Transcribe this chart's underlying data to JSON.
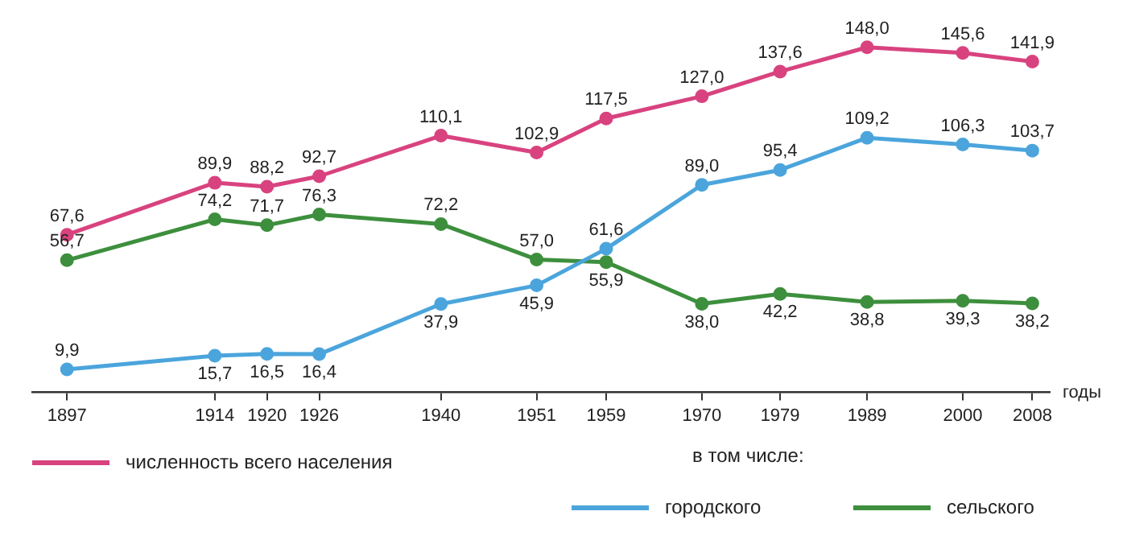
{
  "chart_data": {
    "type": "line",
    "xlabel": "годы",
    "x": [
      1897,
      1914,
      1920,
      1926,
      1940,
      1951,
      1959,
      1970,
      1979,
      1989,
      2000,
      2008
    ],
    "xlim": [
      1893,
      2010
    ],
    "xticks": [
      1897,
      1914,
      1920,
      1926,
      1940,
      1951,
      1959,
      1970,
      1979,
      1989,
      2000,
      2008
    ],
    "tick_labels": "x",
    "grid": false,
    "legend": "bottom",
    "marker": "circle",
    "line_style": "solid",
    "series": [
      {
        "name": "численность всего населения",
        "color": "#d8437f",
        "values": [
          67.6,
          89.9,
          88.2,
          92.7,
          110.1,
          102.9,
          117.5,
          127.0,
          137.6,
          148.0,
          145.6,
          141.9
        ],
        "value_labels": [
          "67,6",
          "89,9",
          "88,2",
          "92,7",
          "110,1",
          "102,9",
          "117,5",
          "127,0",
          "137,6",
          "148,0",
          "145,6",
          "141,9"
        ]
      },
      {
        "name": "городского",
        "color": "#4ba5dc",
        "values": [
          9.9,
          15.7,
          16.5,
          16.4,
          37.9,
          45.9,
          61.6,
          89.0,
          95.4,
          109.2,
          106.3,
          103.7
        ],
        "value_labels": [
          "9,9",
          "15,7",
          "16,5",
          "16,4",
          "37,9",
          "45,9",
          "61,6",
          "89,0",
          "95,4",
          "109,2",
          "106,3",
          "103,7"
        ]
      },
      {
        "name": "сельского",
        "color": "#3d8f3d",
        "values": [
          56.7,
          74.2,
          71.7,
          76.3,
          72.2,
          57.0,
          55.9,
          38.0,
          42.2,
          38.8,
          39.3,
          38.2
        ],
        "value_labels": [
          "56,7",
          "74,2",
          "71,7",
          "76,3",
          "72,2",
          "57,0",
          "55,9",
          "38,0",
          "42,2",
          "38,8",
          "39,3",
          "38,2"
        ]
      }
    ],
    "annotations": [
      "в том числе:"
    ]
  }
}
